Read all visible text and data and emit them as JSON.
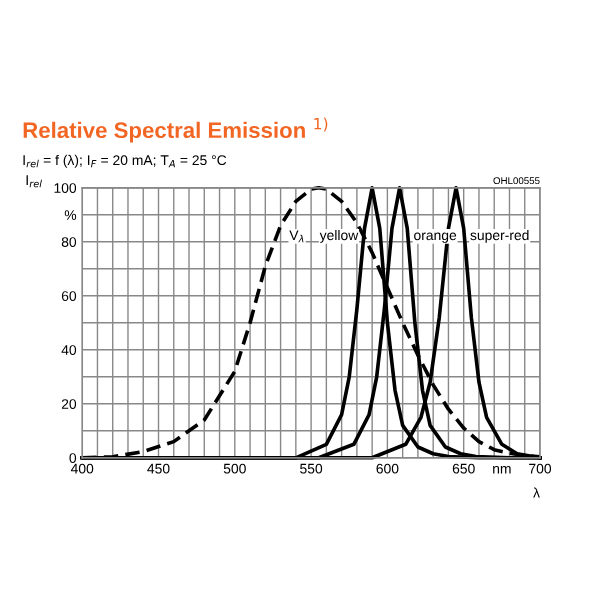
{
  "chart_data": {
    "type": "line",
    "title": "Relative Spectral Emission $^{1)}$",
    "subtitle": "I$_{rel}$ = f (λ); I$_{F}$ = 20 mA; T$_{A}$ = 25 °C",
    "xlabel": "λ",
    "ylabel": "I$_{rel}$",
    "annotations": [
      "OHL00555"
    ],
    "xlim": [
      400,
      700
    ],
    "ylim": [
      0,
      100
    ],
    "xticks": [
      400,
      450,
      500,
      550,
      600,
      650,
      {
        "value": 675,
        "label": "nm"
      },
      700
    ],
    "yticks": [
      0,
      20,
      40,
      60,
      80,
      {
        "value": 90,
        "label": "%"
      },
      100
    ],
    "grid": true,
    "legend": false,
    "marker": "none",
    "series": [
      {
        "name": "V$_{λ}$",
        "color": "#000000",
        "line_style": "dashed",
        "x": [
          400,
          420,
          440,
          460,
          480,
          500,
          510,
          520,
          530,
          540,
          550,
          555,
          560,
          570,
          580,
          590,
          600,
          610,
          620,
          630,
          640,
          650,
          660,
          670,
          680,
          690,
          700
        ],
        "values": [
          0,
          0.4,
          2.3,
          6,
          14,
          32,
          50,
          71,
          86,
          95,
          99.5,
          100,
          99.5,
          95,
          87,
          76,
          63,
          50,
          38,
          27,
          18,
          11,
          6,
          3,
          1.7,
          0.8,
          0.4
        ]
      },
      {
        "name": "yellow",
        "color": "#000000",
        "line_style": "solid",
        "x": [
          400,
          540,
          560,
          570,
          575,
          580,
          585,
          590,
          595,
          600,
          605,
          610,
          620,
          630,
          640,
          660,
          700
        ],
        "values": [
          0,
          0,
          5,
          16,
          30,
          55,
          85,
          100,
          85,
          50,
          25,
          12,
          4,
          1.5,
          0.5,
          0,
          0
        ]
      },
      {
        "name": "orange",
        "color": "#000000",
        "line_style": "solid",
        "x": [
          400,
          555,
          578,
          588,
          593,
          598,
          603,
          608,
          613,
          618,
          623,
          628,
          638,
          648,
          658,
          680,
          700
        ],
        "values": [
          0,
          0,
          5,
          16,
          30,
          55,
          85,
          100,
          85,
          50,
          25,
          12,
          4,
          1.5,
          0.5,
          0,
          0
        ]
      },
      {
        "name": "super-red",
        "color": "#000000",
        "line_style": "solid",
        "x": [
          400,
          590,
          612,
          622,
          628,
          634,
          640,
          645,
          650,
          655,
          660,
          665,
          675,
          685,
          700
        ],
        "values": [
          0,
          0,
          5,
          15,
          28,
          52,
          85,
          100,
          85,
          52,
          28,
          15,
          5,
          1.5,
          0
        ]
      }
    ]
  }
}
